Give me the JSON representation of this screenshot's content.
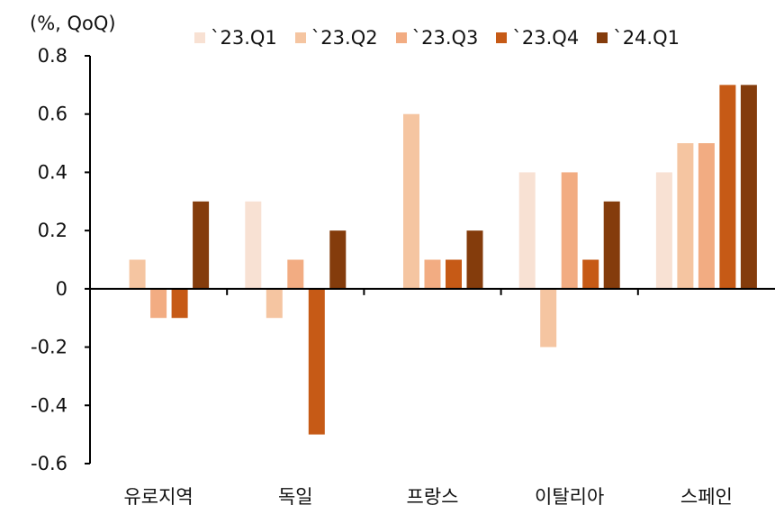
{
  "chart_data": {
    "type": "bar",
    "unit_label": "(%, QoQ)",
    "categories": [
      "유로지역",
      "독일",
      "프랑스",
      "이탈리아",
      "스페인"
    ],
    "series": [
      {
        "name": "`23.Q1",
        "color": "#F8E1D3",
        "values": [
          0.0,
          0.3,
          0.0,
          0.4,
          0.4
        ]
      },
      {
        "name": "`23.Q2",
        "color": "#F5C5A1",
        "values": [
          0.1,
          -0.1,
          0.6,
          -0.2,
          0.5
        ]
      },
      {
        "name": "`23.Q3",
        "color": "#F2AC82",
        "values": [
          -0.1,
          0.1,
          0.1,
          0.4,
          0.5
        ]
      },
      {
        "name": "`23.Q4",
        "color": "#C65A16",
        "values": [
          -0.1,
          -0.5,
          0.1,
          0.1,
          0.7
        ]
      },
      {
        "name": "`24.Q1",
        "color": "#843C0C",
        "values": [
          0.3,
          0.2,
          0.2,
          0.3,
          0.7
        ]
      }
    ],
    "ylim": [
      -0.6,
      0.8
    ],
    "yticks": [
      -0.6,
      -0.4,
      -0.2,
      0,
      0.2,
      0.4,
      0.6,
      0.8
    ],
    "ytick_labels": [
      "-0.6",
      "-0.4",
      "-0.2",
      "0",
      "0.2",
      "0.4",
      "0.6",
      "0.8"
    ],
    "legend_position": "top"
  }
}
